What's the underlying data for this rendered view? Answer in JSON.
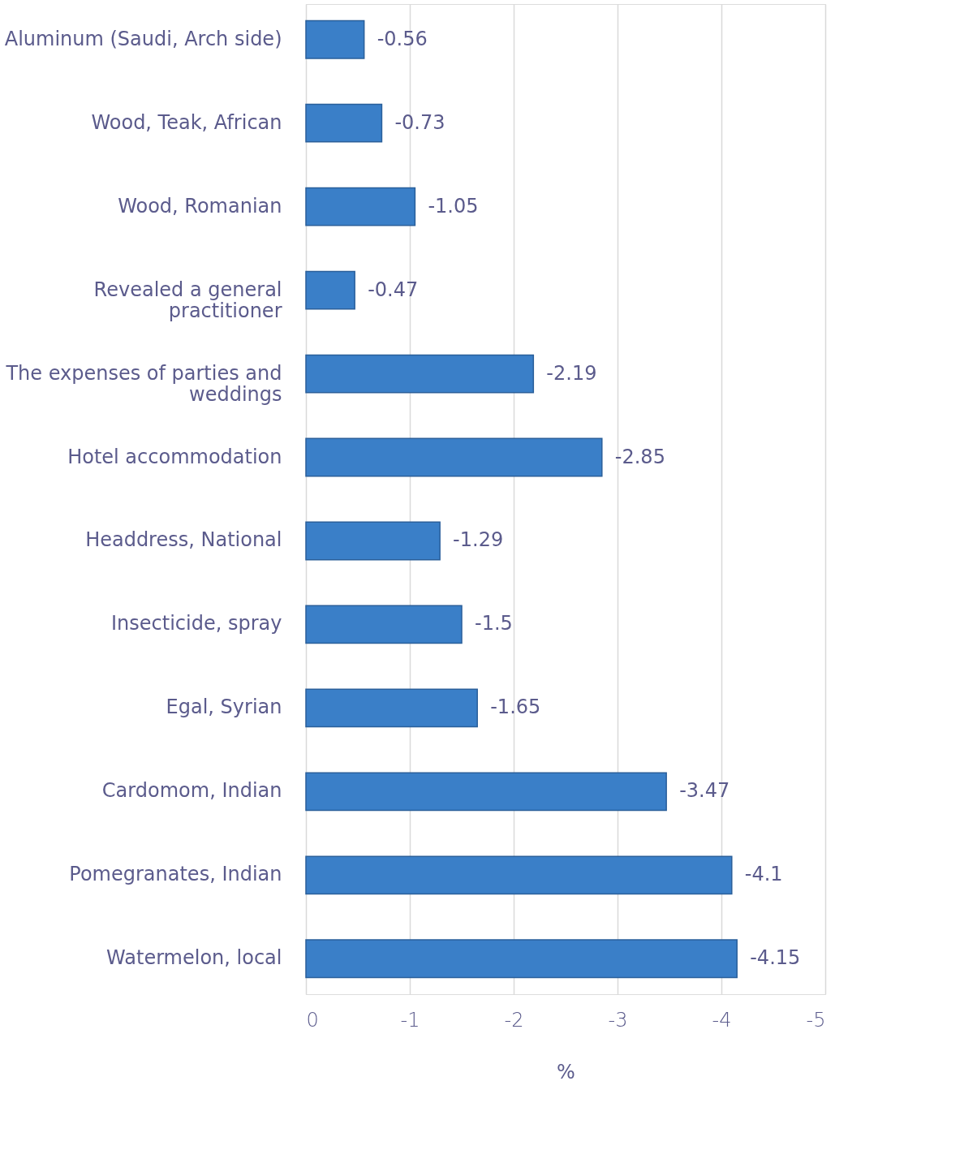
{
  "chart_data": {
    "type": "bar",
    "orientation": "horizontal",
    "xlabel": "%",
    "categories": [
      "Aluminum (Saudi, Arch side)",
      "Wood, Teak, African",
      "Wood, Romanian",
      "Revealed a general practitioner",
      "The expenses of parties and weddings",
      "Hotel accommodation",
      "Headdress, National",
      "Insecticide, spray",
      "Egal, Syrian",
      "Cardomom, Indian",
      "Pomegranates, Indian",
      "Watermelon, local"
    ],
    "values": [
      -0.56,
      -0.73,
      -1.05,
      -0.47,
      -2.19,
      -2.85,
      -1.29,
      -1.5,
      -1.65,
      -3.47,
      -4.1,
      -4.15
    ],
    "color": "#3a7fc8",
    "xlim": [
      0,
      -5
    ],
    "xticks": [
      0,
      -1,
      -2,
      -3,
      -4,
      -5
    ],
    "grid": "x",
    "data_labels": true
  }
}
